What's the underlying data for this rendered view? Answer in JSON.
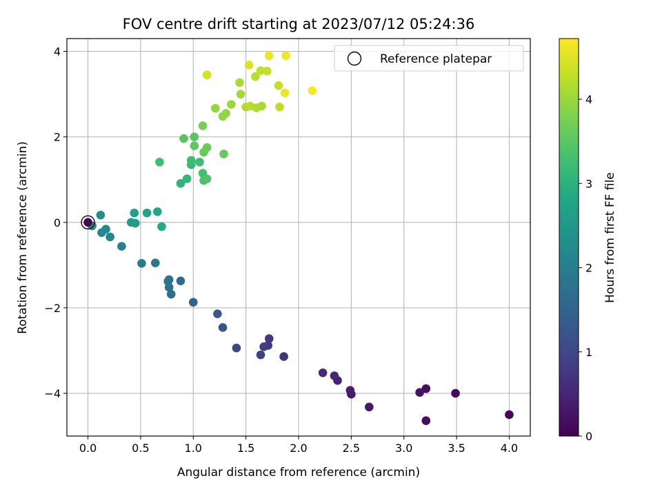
{
  "chart_data": {
    "type": "scatter",
    "title": "FOV centre drift starting at 2023/07/12 05:24:36",
    "xlabel": "Angular distance from reference (arcmin)",
    "ylabel": "Rotation from reference (arcmin)",
    "xlim": [
      -0.2,
      4.2
    ],
    "ylim": [
      -5.0,
      4.3
    ],
    "xticks": [
      0.0,
      0.5,
      1.0,
      1.5,
      2.0,
      2.5,
      3.0,
      3.5,
      4.0
    ],
    "xtick_labels": [
      "0.0",
      "0.5",
      "1.0",
      "1.5",
      "2.0",
      "2.5",
      "3.0",
      "3.5",
      "4.0"
    ],
    "yticks": [
      -4,
      -2,
      0,
      2,
      4
    ],
    "ytick_labels": [
      "−4",
      "−2",
      "0",
      "2",
      "4"
    ],
    "grid": true,
    "legend": {
      "position": "top-right",
      "entries": [
        "Reference platepar"
      ]
    },
    "reference_point": {
      "x": 0.0,
      "y": 0.0
    },
    "colorbar": {
      "label": "Hours from first FF file",
      "colormap": "viridis",
      "range": [
        0,
        4.72
      ],
      "ticks": [
        0,
        1,
        2,
        3,
        4
      ],
      "tick_labels": [
        "0",
        "1",
        "2",
        "3",
        "4"
      ]
    },
    "points": [
      {
        "x": 4.0,
        "y": -4.5,
        "h": 0.05
      },
      {
        "x": 3.49,
        "y": -4.0,
        "h": 0.1
      },
      {
        "x": 3.21,
        "y": -4.64,
        "h": 0.15
      },
      {
        "x": 3.21,
        "y": -3.89,
        "h": 0.2
      },
      {
        "x": 3.15,
        "y": -3.98,
        "h": 0.25
      },
      {
        "x": 2.67,
        "y": -4.32,
        "h": 0.3
      },
      {
        "x": 2.5,
        "y": -4.02,
        "h": 0.35
      },
      {
        "x": 2.49,
        "y": -3.93,
        "h": 0.4
      },
      {
        "x": 2.37,
        "y": -3.7,
        "h": 0.45
      },
      {
        "x": 2.34,
        "y": -3.59,
        "h": 0.5
      },
      {
        "x": 2.23,
        "y": -3.52,
        "h": 0.55
      },
      {
        "x": 1.86,
        "y": -3.14,
        "h": 0.7
      },
      {
        "x": 1.72,
        "y": -2.72,
        "h": 0.75
      },
      {
        "x": 1.71,
        "y": -2.88,
        "h": 0.8
      },
      {
        "x": 1.67,
        "y": -2.91,
        "h": 0.85
      },
      {
        "x": 1.64,
        "y": -3.1,
        "h": 0.9
      },
      {
        "x": 1.41,
        "y": -2.94,
        "h": 1.0
      },
      {
        "x": 1.28,
        "y": -2.46,
        "h": 1.2
      },
      {
        "x": 1.23,
        "y": -2.14,
        "h": 1.3
      },
      {
        "x": 1.0,
        "y": -1.87,
        "h": 1.5
      },
      {
        "x": 0.88,
        "y": -1.37,
        "h": 1.65
      },
      {
        "x": 0.79,
        "y": -1.68,
        "h": 1.7
      },
      {
        "x": 0.77,
        "y": -1.34,
        "h": 1.75
      },
      {
        "x": 0.77,
        "y": -1.52,
        "h": 1.8
      },
      {
        "x": 0.76,
        "y": -1.38,
        "h": 1.85
      },
      {
        "x": 0.64,
        "y": -0.95,
        "h": 1.9
      },
      {
        "x": 0.51,
        "y": -0.96,
        "h": 1.95
      },
      {
        "x": 0.32,
        "y": -0.56,
        "h": 2.05
      },
      {
        "x": 0.21,
        "y": -0.34,
        "h": 2.15
      },
      {
        "x": 0.17,
        "y": -0.16,
        "h": 2.2
      },
      {
        "x": 0.13,
        "y": -0.24,
        "h": 2.25
      },
      {
        "x": 0.12,
        "y": 0.17,
        "h": 2.3
      },
      {
        "x": 0.04,
        "y": -0.08,
        "h": 2.35
      },
      {
        "x": 0.0,
        "y": 0.0,
        "h": 0.0
      },
      {
        "x": 0.41,
        "y": 0.0,
        "h": 2.55
      },
      {
        "x": 0.45,
        "y": -0.02,
        "h": 2.6
      },
      {
        "x": 0.44,
        "y": 0.22,
        "h": 2.7
      },
      {
        "x": 0.56,
        "y": 0.22,
        "h": 2.75
      },
      {
        "x": 0.66,
        "y": 0.25,
        "h": 2.8
      },
      {
        "x": 0.7,
        "y": -0.1,
        "h": 2.85
      },
      {
        "x": 0.88,
        "y": 0.91,
        "h": 3.05
      },
      {
        "x": 0.94,
        "y": 1.02,
        "h": 3.1
      },
      {
        "x": 0.98,
        "y": 1.35,
        "h": 3.15
      },
      {
        "x": 0.98,
        "y": 1.45,
        "h": 3.2
      },
      {
        "x": 1.06,
        "y": 1.41,
        "h": 3.25
      },
      {
        "x": 1.09,
        "y": 1.15,
        "h": 3.3
      },
      {
        "x": 1.1,
        "y": 0.98,
        "h": 3.35
      },
      {
        "x": 1.13,
        "y": 1.02,
        "h": 3.4
      },
      {
        "x": 0.68,
        "y": 1.41,
        "h": 3.25
      },
      {
        "x": 0.91,
        "y": 1.96,
        "h": 3.45
      },
      {
        "x": 1.01,
        "y": 2.0,
        "h": 3.5
      },
      {
        "x": 1.01,
        "y": 1.79,
        "h": 3.55
      },
      {
        "x": 1.1,
        "y": 1.64,
        "h": 3.6
      },
      {
        "x": 1.13,
        "y": 1.75,
        "h": 3.65
      },
      {
        "x": 1.29,
        "y": 1.6,
        "h": 3.6
      },
      {
        "x": 1.09,
        "y": 2.26,
        "h": 3.75
      },
      {
        "x": 1.21,
        "y": 2.67,
        "h": 3.95
      },
      {
        "x": 1.28,
        "y": 2.48,
        "h": 3.9
      },
      {
        "x": 1.31,
        "y": 2.55,
        "h": 3.95
      },
      {
        "x": 1.36,
        "y": 2.76,
        "h": 4.0
      },
      {
        "x": 1.45,
        "y": 3.0,
        "h": 4.05
      },
      {
        "x": 1.44,
        "y": 3.27,
        "h": 4.1
      },
      {
        "x": 1.5,
        "y": 2.7,
        "h": 4.15
      },
      {
        "x": 1.54,
        "y": 2.72,
        "h": 4.2
      },
      {
        "x": 1.6,
        "y": 2.68,
        "h": 4.15
      },
      {
        "x": 1.65,
        "y": 2.72,
        "h": 4.1
      },
      {
        "x": 1.59,
        "y": 3.41,
        "h": 4.2
      },
      {
        "x": 1.64,
        "y": 3.55,
        "h": 4.25
      },
      {
        "x": 1.7,
        "y": 3.54,
        "h": 4.3
      },
      {
        "x": 1.81,
        "y": 3.2,
        "h": 4.3
      },
      {
        "x": 1.82,
        "y": 2.7,
        "h": 4.25
      },
      {
        "x": 1.13,
        "y": 3.45,
        "h": 4.4
      },
      {
        "x": 1.53,
        "y": 3.68,
        "h": 4.5
      },
      {
        "x": 1.72,
        "y": 3.9,
        "h": 4.6
      },
      {
        "x": 1.88,
        "y": 3.9,
        "h": 4.65
      },
      {
        "x": 1.87,
        "y": 3.03,
        "h": 4.6
      },
      {
        "x": 2.13,
        "y": 3.08,
        "h": 4.7
      }
    ]
  }
}
